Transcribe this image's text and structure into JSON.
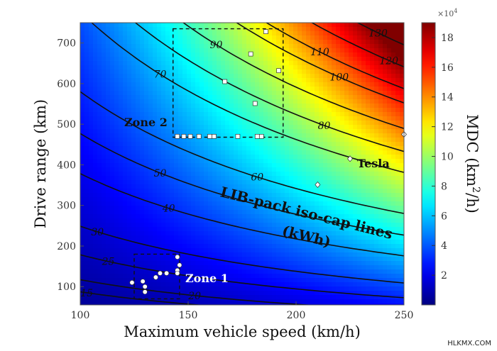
{
  "watermark": "HLKMX.COM",
  "chart_data": {
    "type": "heatmap",
    "xlabel": "Maximum vehicle speed (km/h)",
    "ylabel": "Drive range (km)",
    "xlim": [
      100,
      250
    ],
    "ylim": [
      55,
      750
    ],
    "xticks": [
      100,
      150,
      200,
      250
    ],
    "xtick_labels": [
      "100",
      "150",
      "200",
      "250"
    ],
    "yticks": [
      100,
      200,
      300,
      400,
      500,
      600,
      700
    ],
    "ytick_labels": [
      "100",
      "200",
      "300",
      "400",
      "500",
      "600",
      "700"
    ],
    "colorbar": {
      "label": "MDC (km²/h)",
      "label_main": "MDC (km",
      "label_sup": "2",
      "label_end": "/h)",
      "multiplier": "×10",
      "multiplier_exp": "4",
      "range": [
        0,
        19
      ],
      "ticks": [
        2,
        4,
        6,
        8,
        10,
        12,
        14,
        16,
        18
      ],
      "tick_labels": [
        "2",
        "4",
        "6",
        "8",
        "10",
        "12",
        "14",
        "16",
        "18"
      ],
      "colormap": "jet"
    },
    "iso_lines": {
      "title": "LIB-pack iso-cap lines",
      "unit": "(kWh)",
      "curves": [
        {
          "value": 15,
          "label": "15",
          "label_at": [
            103,
            85
          ]
        },
        {
          "value": 20,
          "label": "20",
          "label_at": [
            153,
            78
          ]
        },
        {
          "value": 25,
          "label": "25",
          "label_at": [
            113,
            162
          ]
        },
        {
          "value": 30,
          "label": "30",
          "label_at": [
            108,
            235
          ]
        },
        {
          "value": 40,
          "label": "40",
          "label_at": [
            141,
            293
          ]
        },
        {
          "value": 50,
          "label": "50",
          "label_at": [
            137,
            380
          ]
        },
        {
          "value": 60,
          "label": "60",
          "label_at": [
            182,
            370
          ]
        },
        {
          "value": 70,
          "label": "70",
          "label_at": [
            137,
            623
          ]
        },
        {
          "value": 80,
          "label": "80",
          "label_at": [
            213,
            497
          ]
        },
        {
          "value": 90,
          "label": "90",
          "label_at": [
            163,
            696
          ]
        },
        {
          "value": 100,
          "label": "100",
          "label_at": [
            220,
            616
          ]
        },
        {
          "value": 110,
          "label": "110",
          "label_at": [
            211,
            678
          ]
        },
        {
          "value": 120,
          "label": "120",
          "label_at": [
            243,
            657
          ]
        },
        {
          "value": 130,
          "label": "130",
          "label_at": [
            238,
            725
          ]
        }
      ]
    },
    "zones": [
      {
        "name": "Zone 1",
        "x": [
          125,
          146
        ],
        "y": [
          70,
          180
        ]
      },
      {
        "name": "Zone 2",
        "x": [
          143,
          194
        ],
        "y": [
          468,
          735
        ]
      }
    ],
    "series": [
      {
        "name": "Zone 1",
        "marker": "circle",
        "points": [
          [
            124,
            110
          ],
          [
            129,
            113
          ],
          [
            130,
            100
          ],
          [
            130,
            87
          ],
          [
            135,
            123
          ],
          [
            137,
            133
          ],
          [
            140,
            133
          ],
          [
            145,
            173
          ],
          [
            146,
            153
          ],
          [
            145,
            140
          ],
          [
            145,
            133
          ]
        ]
      },
      {
        "name": "Zone 2",
        "marker": "square",
        "points": [
          [
            145,
            470
          ],
          [
            148,
            470
          ],
          [
            151,
            470
          ],
          [
            155,
            470
          ],
          [
            160,
            470
          ],
          [
            162,
            470
          ],
          [
            173,
            470
          ],
          [
            182,
            470
          ],
          [
            184,
            470
          ],
          [
            167,
            605
          ],
          [
            179,
            673
          ],
          [
            181,
            551
          ],
          [
            186,
            728
          ],
          [
            192,
            632
          ]
        ]
      },
      {
        "name": "Tesla",
        "marker": "diamond",
        "points": [
          [
            210,
            351
          ],
          [
            225,
            415
          ],
          [
            250,
            475
          ]
        ]
      }
    ],
    "annotations": [
      {
        "text": "Zone 1",
        "x": 148,
        "y": 103
      },
      {
        "text": "Zone 2",
        "x": 121,
        "y": 490
      },
      {
        "text": "Tesla",
        "x": 229,
        "y": 403
      }
    ]
  }
}
